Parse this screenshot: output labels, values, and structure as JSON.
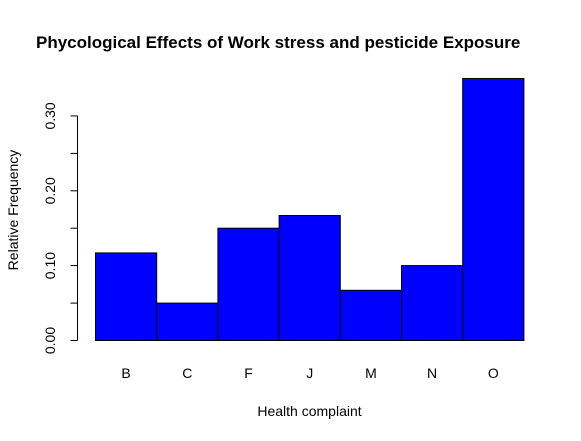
{
  "chart_data": {
    "type": "bar",
    "title": "Phycological Effects of Work stress and pesticide Exposure",
    "xlabel": "Health complaint",
    "ylabel": "Relative Frequency",
    "categories": [
      "B",
      "C",
      "F",
      "J",
      "M",
      "N",
      "O"
    ],
    "values": [
      0.117,
      0.05,
      0.15,
      0.167,
      0.067,
      0.1,
      0.35
    ],
    "ylim": [
      0,
      0.35
    ],
    "yticks": [
      0.0,
      0.05,
      0.1,
      0.15,
      0.2,
      0.25,
      0.3
    ],
    "ytick_labels": [
      "0.00",
      "0.10",
      "0.20",
      "0.30"
    ],
    "ytick_labeled_values": [
      0.0,
      0.1,
      0.2,
      0.3
    ],
    "bar_color": "#0000ff",
    "grid": false,
    "legend": "none"
  }
}
